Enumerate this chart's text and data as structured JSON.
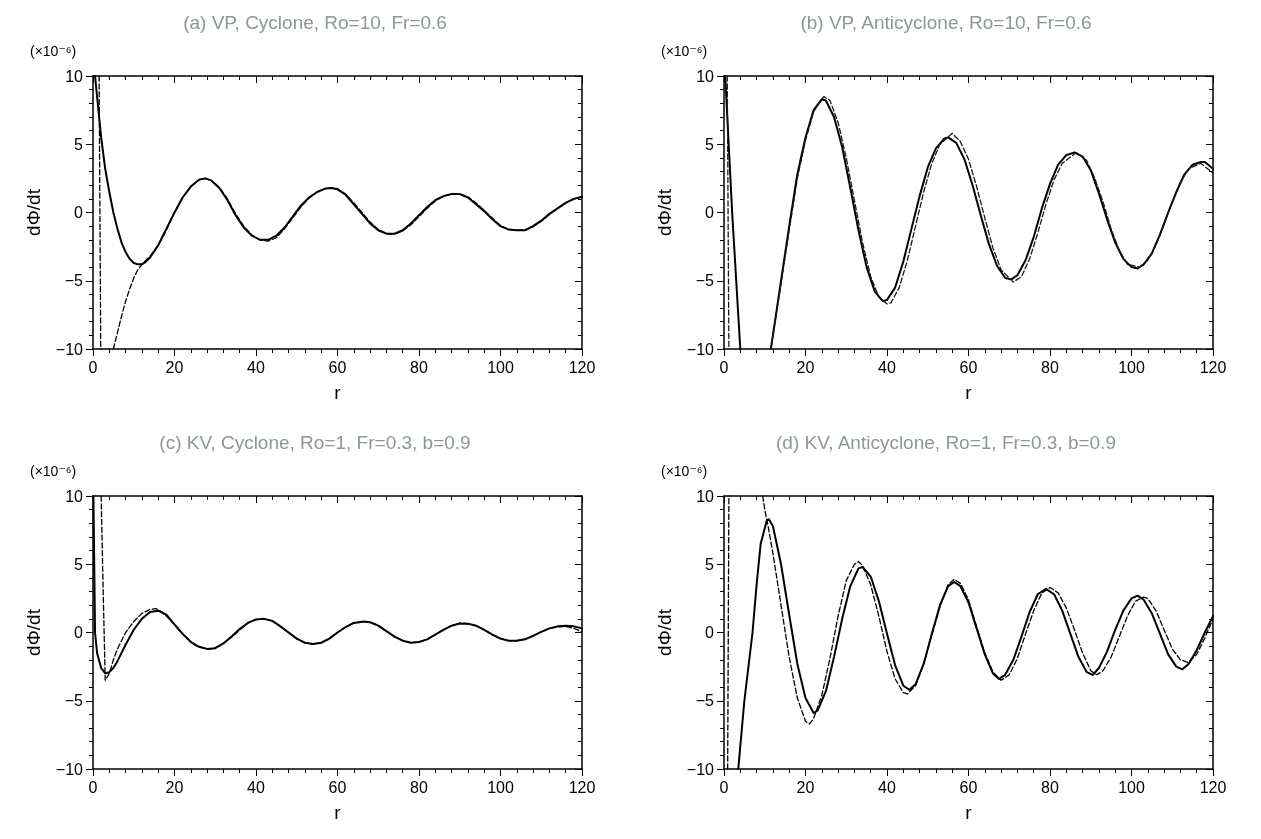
{
  "chart_data": [
    {
      "type": "line",
      "title": "(a) VP, Cyclone, Ro=10, Fr=0.6",
      "xlabel": "r",
      "ylabel": "dΦ/dt",
      "annotations": [
        "(×10⁻⁶)"
      ],
      "xlim": [
        0,
        120
      ],
      "xticks": [
        0,
        20,
        40,
        60,
        80,
        100,
        120
      ],
      "ylim": [
        -10,
        10
      ],
      "yticks": [
        -10,
        -5,
        0,
        5,
        10
      ],
      "marker": "none",
      "grid": false,
      "series": [
        {
          "color": "#000000",
          "line_style": "solid",
          "x": [
            0.5,
            1,
            2,
            3,
            4,
            5,
            6,
            7,
            8,
            9,
            10,
            11,
            12,
            13,
            14,
            16,
            18,
            20,
            22,
            24,
            26,
            27.5,
            29,
            31,
            33,
            35,
            37,
            39,
            41,
            43,
            45,
            47,
            49,
            51,
            53,
            55,
            57,
            58.5,
            60,
            62,
            64,
            66,
            68,
            70,
            72,
            74,
            76,
            78,
            80,
            82,
            84,
            86,
            88,
            90,
            92,
            94,
            96,
            98,
            100,
            102,
            104,
            106,
            108,
            110,
            112,
            114,
            116,
            118,
            120
          ],
          "values": [
            10,
            8.5,
            5.5,
            3.2,
            1.5,
            0,
            -1.2,
            -2.2,
            -2.9,
            -3.4,
            -3.7,
            -3.8,
            -3.8,
            -3.6,
            -3.3,
            -2.4,
            -1.2,
            0,
            1.1,
            1.9,
            2.4,
            2.5,
            2.35,
            1.8,
            0.9,
            -0.2,
            -1.1,
            -1.7,
            -2,
            -2,
            -1.7,
            -1.1,
            -0.3,
            0.5,
            1.1,
            1.5,
            1.75,
            1.8,
            1.7,
            1.3,
            0.6,
            -0.1,
            -0.8,
            -1.3,
            -1.55,
            -1.55,
            -1.3,
            -0.8,
            -0.2,
            0.4,
            0.9,
            1.2,
            1.35,
            1.35,
            1.1,
            0.6,
            0.1,
            -0.5,
            -1,
            -1.25,
            -1.3,
            -1.3,
            -1,
            -0.6,
            -0.1,
            0.3,
            0.7,
            1,
            1.15
          ]
        },
        {
          "color": "#000000",
          "line_style": "dashed",
          "x": [
            1.5,
            1.7,
            1.9,
            3,
            5,
            6,
            7,
            8,
            9,
            10,
            11,
            12,
            13,
            14,
            16,
            18,
            20,
            22,
            24,
            26,
            27.5,
            29,
            31,
            33,
            35,
            37,
            39,
            41,
            43,
            45,
            47,
            49,
            51,
            53,
            55,
            57,
            58.5,
            60,
            62,
            64,
            66,
            68,
            70,
            72,
            74,
            76,
            78,
            80,
            82,
            84,
            86,
            88,
            90,
            92,
            94,
            96,
            98,
            100,
            102,
            104,
            106,
            108,
            110,
            112,
            114,
            116,
            118,
            120
          ],
          "values": [
            10,
            0,
            -10,
            null,
            -10,
            -8.8,
            -7.6,
            -6.5,
            -5.6,
            -4.8,
            -4.2,
            -3.8,
            -3.5,
            -3.2,
            -2.4,
            -1.3,
            0,
            1.1,
            1.9,
            2.4,
            2.5,
            2.35,
            1.85,
            1,
            -0.1,
            -1,
            -1.65,
            -2,
            -2.1,
            -1.85,
            -1.2,
            -0.4,
            0.4,
            1.05,
            1.5,
            1.75,
            1.8,
            1.75,
            1.35,
            0.7,
            0,
            -0.7,
            -1.25,
            -1.55,
            -1.6,
            -1.35,
            -0.9,
            -0.3,
            0.3,
            0.85,
            1.2,
            1.35,
            1.35,
            1.15,
            0.7,
            0.15,
            -0.4,
            -0.95,
            -1.25,
            -1.3,
            -1.3,
            -1.05,
            -0.65,
            -0.15,
            0.3,
            0.7,
            1,
            1.15
          ]
        }
      ]
    },
    {
      "type": "line",
      "title": "(b) VP, Anticyclone, Ro=10, Fr=0.6",
      "xlabel": "r",
      "ylabel": "dΦ/dt",
      "annotations": [
        "(×10⁻⁶)"
      ],
      "xlim": [
        0,
        120
      ],
      "xticks": [
        0,
        20,
        40,
        60,
        80,
        100,
        120
      ],
      "ylim": [
        -10,
        10
      ],
      "yticks": [
        -10,
        -5,
        0,
        5,
        10
      ],
      "marker": "none",
      "grid": false,
      "series": [
        {
          "color": "#000000",
          "line_style": "solid",
          "x": [
            0.3,
            2,
            4,
            8,
            11.5,
            14,
            16,
            18,
            20,
            22,
            24,
            25,
            27,
            29,
            31,
            33,
            35,
            37,
            39,
            40,
            42,
            44,
            46,
            48,
            50,
            52,
            54,
            55,
            57,
            59,
            61,
            63,
            65,
            67,
            69,
            70.5,
            72,
            74,
            76,
            78,
            80,
            82,
            84,
            86,
            88,
            90,
            92,
            94,
            96,
            98,
            100,
            101.5,
            103,
            105,
            107,
            109,
            111,
            113,
            115,
            117,
            118,
            120
          ],
          "values": [
            10,
            0,
            -10,
            null,
            -10,
            -5,
            -1,
            2.8,
            5.5,
            7.5,
            8.3,
            8.2,
            7,
            4.8,
            1.8,
            -1.3,
            -4,
            -5.8,
            -6.5,
            -6.4,
            -5.5,
            -3.6,
            -1.2,
            1.2,
            3.3,
            4.7,
            5.4,
            5.5,
            5.1,
            3.9,
            2,
            -0.2,
            -2.3,
            -3.9,
            -4.8,
            -4.9,
            -4.6,
            -3.5,
            -1.8,
            0.3,
            2.1,
            3.5,
            4.2,
            4.4,
            4.1,
            3.1,
            1.4,
            -0.5,
            -2.2,
            -3.4,
            -4,
            -4.1,
            -3.8,
            -3,
            -1.6,
            0,
            1.5,
            2.8,
            3.5,
            3.7,
            3.7,
            3.2
          ]
        },
        {
          "color": "#1a1a1a",
          "line_style": "dashed",
          "x": [
            0.8,
            1,
            1.2,
            6,
            11.5,
            14,
            16,
            18,
            20,
            22,
            24.5,
            26,
            28,
            30,
            32,
            34,
            36,
            38,
            40,
            41,
            43,
            45,
            47,
            49,
            51,
            53,
            56,
            58,
            60,
            62,
            64,
            66,
            68,
            71,
            73,
            75,
            77,
            79,
            81,
            83,
            86.5,
            89,
            91,
            93,
            95,
            97,
            99,
            102,
            104,
            106,
            108,
            110,
            112,
            114,
            117,
            120
          ],
          "values": [
            10,
            0,
            -10,
            null,
            -10,
            -5.2,
            -1.3,
            2.5,
            5.3,
            7.4,
            8.5,
            8.2,
            6.6,
            4,
            0.9,
            -2.2,
            -4.7,
            -6.2,
            -6.7,
            -6.6,
            -5.5,
            -3.5,
            -1,
            1.5,
            3.6,
            5,
            5.8,
            5.2,
            3.9,
            1.9,
            -0.4,
            -2.6,
            -4.2,
            -5.1,
            -4.7,
            -3.4,
            -1.5,
            0.6,
            2.4,
            3.6,
            4.4,
            3.8,
            2.5,
            0.8,
            -1.2,
            -2.8,
            -3.8,
            -4,
            -3.5,
            -2.4,
            -0.9,
            0.8,
            2.2,
            3.2,
            3.6,
            2.9
          ]
        }
      ]
    },
    {
      "type": "line",
      "title": "(c) KV, Cyclone, Ro=1, Fr=0.3, b=0.9",
      "xlabel": "r",
      "ylabel": "dΦ/dt",
      "annotations": [
        "(×10⁻⁶)"
      ],
      "xlim": [
        0,
        120
      ],
      "xticks": [
        0,
        20,
        40,
        60,
        80,
        100,
        120
      ],
      "ylim": [
        -10,
        10
      ],
      "yticks": [
        -10,
        -5,
        0,
        5,
        10
      ],
      "marker": "none",
      "grid": false,
      "series": [
        {
          "color": "#000000",
          "line_style": "solid",
          "x": [
            0.1,
            0.5,
            1,
            2,
            3,
            4,
            5,
            6,
            8,
            10,
            12,
            14,
            16,
            18,
            20,
            22,
            24,
            26,
            28,
            30,
            32,
            34,
            36,
            38,
            40,
            42,
            44,
            46,
            48,
            50,
            52,
            54,
            56,
            58,
            60,
            62,
            64,
            66.5,
            68,
            70,
            72,
            74,
            76,
            78,
            80,
            82,
            84,
            86,
            88,
            90,
            92,
            94,
            96,
            98,
            100,
            102,
            104,
            106,
            108,
            110,
            112,
            114,
            116,
            118,
            120
          ],
          "values": [
            10,
            0,
            -1.5,
            -2.6,
            -3,
            -2.9,
            -2.6,
            -2.1,
            -0.9,
            0.2,
            1,
            1.5,
            1.6,
            1.3,
            0.6,
            -0.1,
            -0.7,
            -1.05,
            -1.2,
            -1.15,
            -0.8,
            -0.3,
            0.25,
            0.7,
            0.95,
            1,
            0.85,
            0.45,
            0,
            -0.45,
            -0.75,
            -0.85,
            -0.75,
            -0.45,
            0,
            0.4,
            0.7,
            0.8,
            0.75,
            0.5,
            0.1,
            -0.3,
            -0.6,
            -0.75,
            -0.7,
            -0.5,
            -0.15,
            0.2,
            0.5,
            0.65,
            0.65,
            0.5,
            0.2,
            -0.15,
            -0.45,
            -0.6,
            -0.6,
            -0.5,
            -0.25,
            0.05,
            0.3,
            0.45,
            0.5,
            0.45,
            0.3
          ]
        },
        {
          "color": "#000000",
          "line_style": "dashed",
          "x": [
            2,
            2.5,
            3,
            4,
            5,
            6,
            8,
            10,
            12,
            14,
            15.5,
            17,
            19,
            21,
            23,
            25,
            27,
            29,
            31,
            34,
            36,
            38,
            40,
            42,
            44,
            46,
            48,
            50,
            52,
            54,
            56,
            58,
            60,
            62,
            64,
            66.5,
            68,
            70,
            72,
            74,
            76,
            78,
            80,
            82,
            84,
            86,
            88,
            90,
            92,
            94,
            96,
            98,
            100,
            102,
            104,
            106,
            108,
            110,
            112,
            114,
            116,
            118,
            120
          ],
          "values": [
            10,
            3,
            -3.5,
            -3,
            -2,
            -1.2,
            0,
            0.8,
            1.4,
            1.7,
            1.75,
            1.5,
            0.9,
            0.2,
            -0.4,
            -0.9,
            -1.15,
            -1.2,
            -1,
            -0.35,
            0.2,
            0.7,
            0.95,
            1,
            0.85,
            0.45,
            0,
            -0.45,
            -0.75,
            -0.85,
            -0.75,
            -0.45,
            0,
            0.4,
            0.7,
            0.8,
            0.75,
            0.5,
            0.1,
            -0.3,
            -0.6,
            -0.75,
            -0.7,
            -0.5,
            -0.15,
            0.2,
            0.5,
            0.7,
            0.65,
            0.5,
            0.2,
            -0.15,
            -0.45,
            -0.6,
            -0.6,
            -0.5,
            -0.25,
            0.05,
            0.3,
            0.4,
            0.45,
            0.3,
            0.05
          ]
        }
      ]
    },
    {
      "type": "line",
      "title": "(d) KV, Anticyclone, Ro=1, Fr=0.3, b=0.9",
      "xlabel": "r",
      "ylabel": "dΦ/dt",
      "annotations": [
        "(×10⁻⁶)"
      ],
      "xlim": [
        0,
        120
      ],
      "xticks": [
        0,
        20,
        40,
        60,
        80,
        100,
        120
      ],
      "ylim": [
        -10,
        10
      ],
      "yticks": [
        -10,
        -5,
        0,
        5,
        10
      ],
      "marker": "none",
      "grid": false,
      "series": [
        {
          "color": "#000000",
          "line_style": "solid",
          "x": [
            3.5,
            5,
            7,
            8,
            9,
            10.5,
            11,
            12,
            14,
            16,
            18,
            20,
            22,
            23,
            25,
            27,
            29,
            31,
            33,
            34,
            36,
            38,
            40,
            42,
            44,
            45.5,
            47,
            49,
            51,
            53,
            55,
            56.5,
            58,
            60,
            62,
            64,
            66,
            67.5,
            69,
            71,
            73,
            75,
            77,
            79,
            81,
            83,
            85,
            87,
            89,
            90.5,
            92,
            94,
            96,
            98,
            100,
            101.5,
            103,
            105,
            107,
            109,
            111,
            112.5,
            114,
            116,
            118,
            120
          ],
          "values": [
            -10,
            -5,
            0,
            3.5,
            6.5,
            8.2,
            8.3,
            7.8,
            5,
            1.3,
            -2.3,
            -4.8,
            -5.9,
            -5.7,
            -4.3,
            -1.8,
            1,
            3.4,
            4.7,
            4.8,
            4.1,
            2.3,
            -0.1,
            -2.4,
            -3.9,
            -4.2,
            -3.8,
            -2.3,
            -0.1,
            2,
            3.4,
            3.7,
            3.4,
            2.2,
            0.3,
            -1.6,
            -3,
            -3.4,
            -3.1,
            -2,
            -0.3,
            1.5,
            2.8,
            3.2,
            2.8,
            1.6,
            -0.1,
            -1.8,
            -2.9,
            -3.1,
            -2.6,
            -1.4,
            0.2,
            1.6,
            2.5,
            2.7,
            2.4,
            1.4,
            -0.1,
            -1.6,
            -2.5,
            -2.7,
            -2.3,
            -1.3,
            0,
            1.2
          ]
        },
        {
          "color": "#000000",
          "line_style": "dashed",
          "x": [
            0.9,
            1.2,
            5,
            9.5,
            10,
            11,
            12,
            14,
            16,
            18,
            20,
            21,
            22,
            24,
            26,
            28,
            30,
            32,
            33,
            34,
            36,
            38,
            40,
            42,
            44,
            45,
            47,
            49,
            51,
            53,
            55,
            56.5,
            58,
            60,
            62,
            64,
            66,
            68,
            70,
            72,
            74,
            76,
            78,
            80,
            82,
            84,
            86,
            88,
            90,
            91.5,
            93,
            95,
            97,
            99,
            101,
            103,
            104,
            106,
            108,
            110,
            112,
            114,
            116,
            118,
            120
          ],
          "values": [
            -10,
            10,
            null,
            10,
            9,
            7.5,
            5.8,
            2,
            -1.8,
            -4.8,
            -6.5,
            -6.7,
            -6.3,
            -4.6,
            -1.9,
            1.2,
            3.8,
            5,
            5.2,
            4.9,
            3.5,
            1.2,
            -1.4,
            -3.4,
            -4.4,
            -4.5,
            -3.9,
            -2.3,
            -0.2,
            1.9,
            3.5,
            3.9,
            3.6,
            2.4,
            0.4,
            -1.5,
            -2.9,
            -3.5,
            -3.1,
            -1.9,
            -0.1,
            1.6,
            2.9,
            3.3,
            2.9,
            1.8,
            0.2,
            -1.5,
            -2.8,
            -3.1,
            -2.8,
            -1.8,
            -0.3,
            1.2,
            2.3,
            2.6,
            2.5,
            1.6,
            0.2,
            -1.2,
            -2,
            -2.2,
            -1.6,
            -0.4,
            1
          ]
        }
      ]
    }
  ]
}
